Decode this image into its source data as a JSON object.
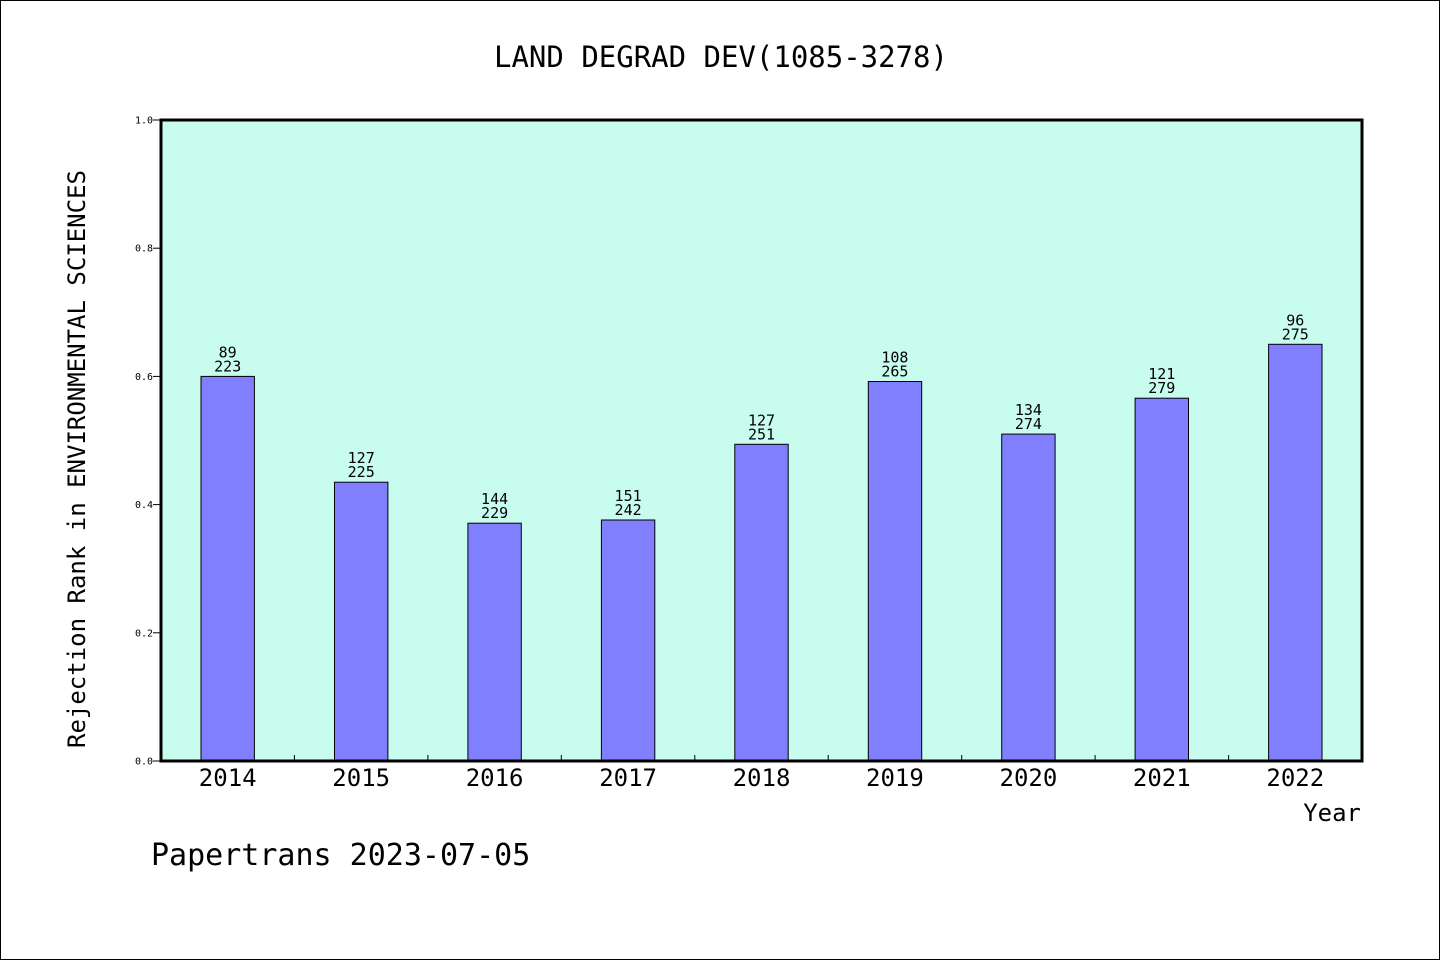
{
  "chart_data": {
    "type": "bar",
    "title": "LAND DEGRAD DEV(1085-3278)",
    "xlabel": "Year",
    "ylabel": "Rejection Rank in ENVIRONMENTAL SCIENCES",
    "ylim": [
      0,
      1.0
    ],
    "yticks": [
      "0.0",
      "0.2",
      "0.4",
      "0.6",
      "0.8",
      "1.0"
    ],
    "grid": false,
    "categories": [
      "2014",
      "2015",
      "2016",
      "2017",
      "2018",
      "2019",
      "2020",
      "2021",
      "2022"
    ],
    "values": [
      0.6,
      0.435,
      0.371,
      0.376,
      0.494,
      0.592,
      0.51,
      0.566,
      0.65
    ],
    "bar_labels": [
      {
        "top": "89",
        "bottom": "223"
      },
      {
        "top": "127",
        "bottom": "225"
      },
      {
        "top": "144",
        "bottom": "229"
      },
      {
        "top": "151",
        "bottom": "242"
      },
      {
        "top": "127",
        "bottom": "251"
      },
      {
        "top": "108",
        "bottom": "265"
      },
      {
        "top": "134",
        "bottom": "274"
      },
      {
        "top": "121",
        "bottom": "279"
      },
      {
        "top": "96",
        "bottom": "275"
      }
    ],
    "colors": {
      "bar": "#8080ff",
      "plot_background": "#c8fcee",
      "axes": "#000000"
    }
  },
  "footer": {
    "text": "Papertrans 2023-07-05"
  }
}
